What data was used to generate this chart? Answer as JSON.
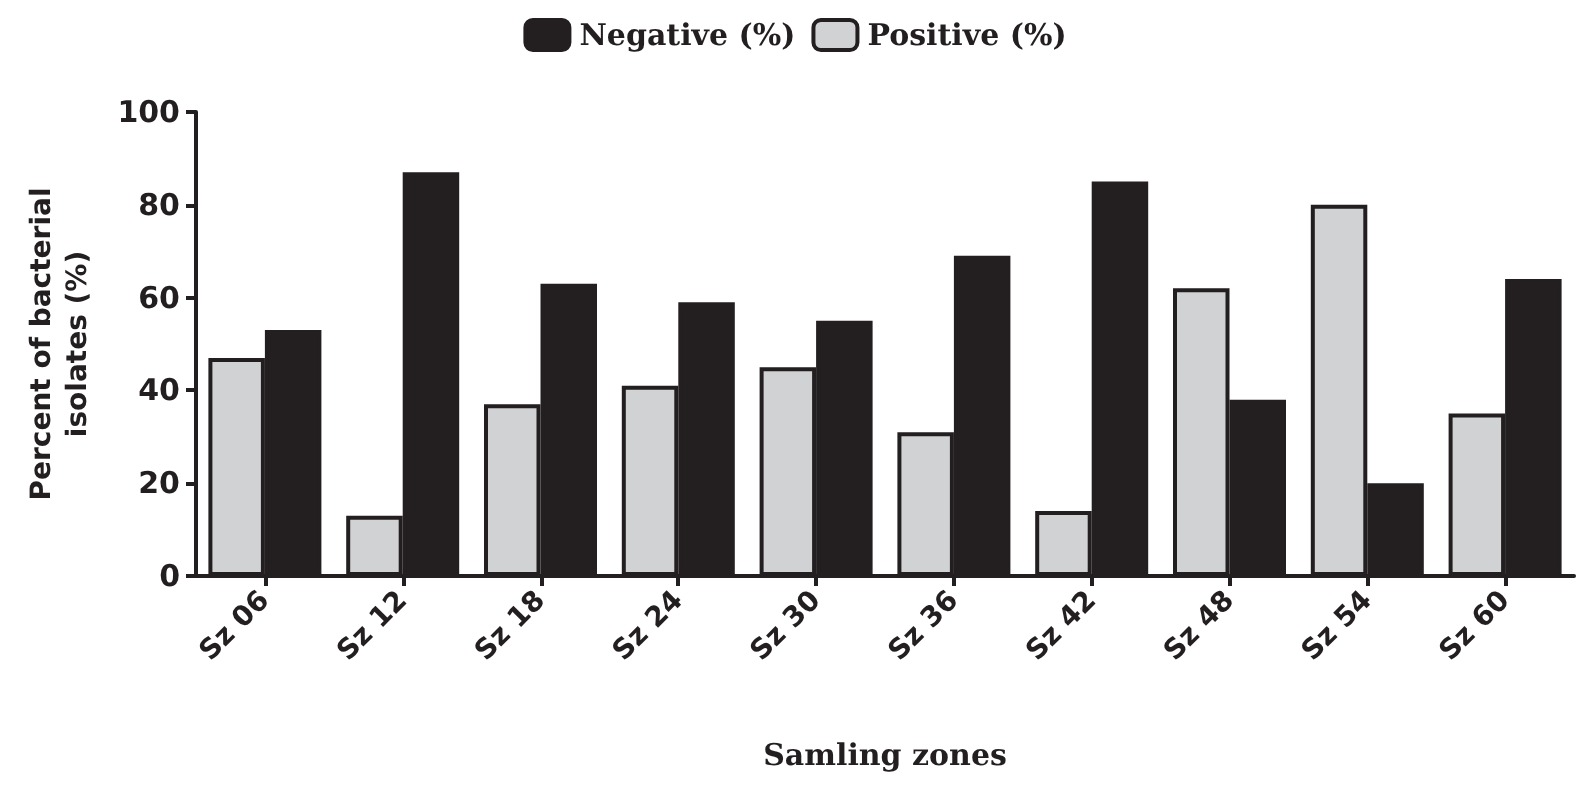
{
  "chart_data": {
    "type": "bar",
    "xlabel": "Samling zones",
    "ylabel": "Percent of bacterial\nisolates (%)",
    "categories": [
      "Sz 06",
      "Sz 12",
      "Sz 18",
      "Sz 24",
      "Sz 30",
      "Sz 36",
      "Sz 42",
      "Sz 48",
      "Sz 54",
      "Sz 60"
    ],
    "series": [
      {
        "name": "Positive (%)",
        "color": "#d1d2d4",
        "values": [
          47,
          13,
          37,
          41,
          45,
          31,
          14,
          62,
          80,
          35
        ]
      },
      {
        "name": "Negative (%)",
        "color": "#231f20",
        "values": [
          53,
          87,
          63,
          59,
          55,
          69,
          85,
          38,
          20,
          64
        ]
      }
    ],
    "ylim": [
      0,
      100
    ],
    "yticks": [
      0,
      20,
      40,
      60,
      80,
      100
    ],
    "grid": false,
    "legend": "top"
  }
}
